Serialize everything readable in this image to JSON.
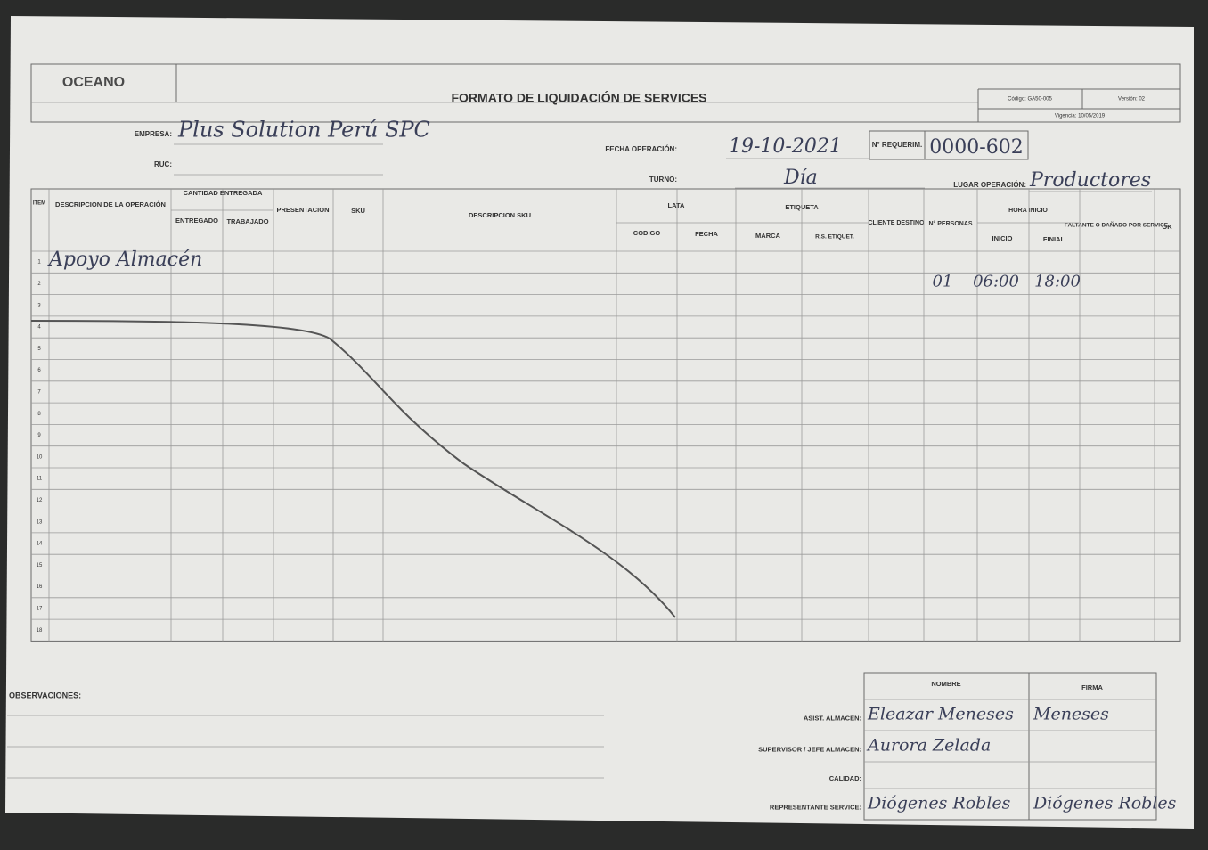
{
  "header": {
    "logo": "OCEANO",
    "title": "FORMATO DE LIQUIDACIÓN DE SERVICES",
    "code": "Código: GA50-005",
    "version": "Versión: 02",
    "validity": "Vigencia: 10/05/2019"
  },
  "fields": {
    "empresa": {
      "label": "EMPRESA:",
      "value": "Plus Solution Perú SPC"
    },
    "ruc": {
      "label": "RUC:"
    },
    "fecha": {
      "label": "FECHA OPERACIÓN:",
      "value": "19-10-2021"
    },
    "requerim": {
      "label": "N° REQUERIM.",
      "value": "0000-602"
    },
    "turno": {
      "label": "TURNO:",
      "value": "Día"
    },
    "lugar": {
      "label": "LUGAR OPERACIÓN:",
      "value": "Productores"
    }
  },
  "table": {
    "headers": {
      "item": "ITEM",
      "descripcion": "DESCRIPCION DE LA OPERACIÓN",
      "cantidad": "CANTIDAD ENTREGADA",
      "entregado": "ENTREGADO",
      "trabajado": "TRABAJADO",
      "presentacion": "PRESENTACION",
      "sku": "SKU",
      "descripcion_sku": "DESCRIPCION SKU",
      "lata": "LATA",
      "codigo": "CODIGO",
      "fecha": "FECHA",
      "etiqueta": "ETIQUETA",
      "marca": "MARCA",
      "rs": "R.S. ETIQUET.",
      "cliente": "CLIENTE DESTINO",
      "personas": "N° PERSONAS",
      "hora": "HORA INICIO",
      "inicio": "INICIO",
      "final": "FINIAL",
      "faltante": "FALTANTE O DAÑADO POR SERVICE",
      "ok": "OK"
    },
    "rows": [
      {
        "item": 1,
        "descripcion": "Apoyo Almacén"
      },
      {
        "item": 2,
        "personas": "01",
        "inicio": "06:00",
        "final": "18:00"
      },
      {
        "item": 3
      },
      {
        "item": 4
      },
      {
        "item": 5
      },
      {
        "item": 6
      },
      {
        "item": 7
      },
      {
        "item": 8
      },
      {
        "item": 9
      },
      {
        "item": 10
      },
      {
        "item": 11
      },
      {
        "item": 12
      },
      {
        "item": 13
      },
      {
        "item": 14
      },
      {
        "item": 15
      },
      {
        "item": 16
      },
      {
        "item": 17
      },
      {
        "item": 18
      }
    ]
  },
  "observations": {
    "label": "OBSERVACIONES:"
  },
  "signatures": {
    "headers": {
      "nombre": "NOMBRE",
      "firma": "FIRMA"
    },
    "rows": [
      {
        "role": "ASIST. ALMACEN:",
        "nombre": "Eleazar Meneses",
        "firma": "Meneses"
      },
      {
        "role": "SUPERVISOR / JEFE ALMACEN:",
        "nombre": "Aurora Zelada"
      },
      {
        "role": "CALIDAD:"
      },
      {
        "role": "REPRESENTANTE SERVICE:",
        "nombre": "Diógenes Robles",
        "firma": "Diógenes Robles"
      }
    ]
  }
}
